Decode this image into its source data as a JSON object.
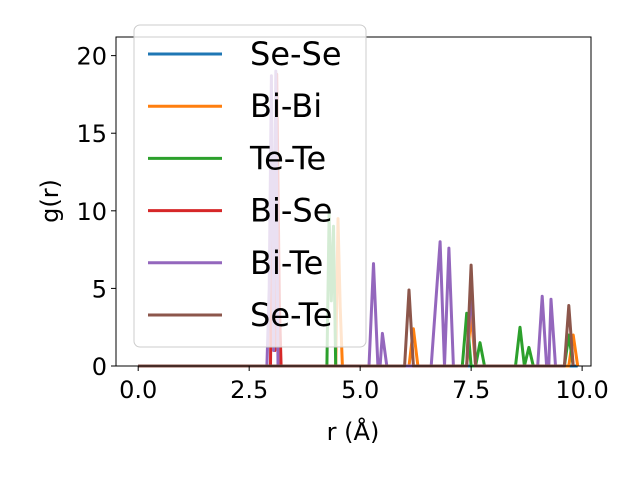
{
  "chart_data": {
    "type": "line",
    "xlabel": "r (Å)",
    "ylabel": "g(r)",
    "xlim": [
      -0.5,
      10.2
    ],
    "ylim": [
      0,
      21.2
    ],
    "xticks": [
      0.0,
      2.5,
      5.0,
      7.5,
      10.0
    ],
    "xtick_labels": [
      "0.0",
      "2.5",
      "5.0",
      "7.5",
      "10.0"
    ],
    "yticks": [
      0,
      5,
      10,
      15,
      20
    ],
    "ytick_labels": [
      "0",
      "5",
      "10",
      "15",
      "20"
    ],
    "grid": false,
    "legend_position": "upper-left",
    "series": [
      {
        "name": "Se-Se",
        "color": "#1f77b4",
        "x": [
          0.0,
          9.9
        ],
        "y": [
          0,
          0
        ]
      },
      {
        "name": "Bi-Bi",
        "color": "#ff7f0e",
        "x": [
          0.0,
          4.45,
          4.5,
          4.55,
          4.6,
          6.1,
          6.2,
          6.3,
          7.4,
          7.5,
          7.6,
          9.7,
          9.8,
          9.9
        ],
        "y": [
          0,
          0,
          9.5,
          3.8,
          0,
          0,
          2.4,
          0,
          0,
          3.4,
          0,
          0,
          2.0,
          0
        ]
      },
      {
        "name": "Te-Te",
        "color": "#2ca02c",
        "x": [
          0.0,
          4.25,
          4.3,
          4.35,
          4.4,
          4.45,
          7.3,
          7.4,
          7.5,
          7.6,
          7.7,
          7.8,
          8.5,
          8.6,
          8.7,
          8.8,
          8.9,
          9.6,
          9.7,
          9.8
        ],
        "y": [
          0,
          0,
          9.8,
          4.2,
          9.0,
          0,
          0,
          3.4,
          0,
          0,
          1.5,
          0,
          0,
          2.5,
          0,
          1.2,
          0,
          0,
          2.0,
          0
        ]
      },
      {
        "name": "Bi-Se",
        "color": "#d62728",
        "x": [
          0.0,
          2.98,
          3.02,
          3.08,
          3.12,
          3.18,
          3.22
        ],
        "y": [
          0,
          0,
          12.0,
          1.0,
          18.8,
          4.0,
          0
        ]
      },
      {
        "name": "Bi-Te",
        "color": "#9467bd",
        "x": [
          0.0,
          2.9,
          2.95,
          3.0,
          3.05,
          3.1,
          3.15,
          5.2,
          5.3,
          5.4,
          5.45,
          5.5,
          5.6,
          6.6,
          6.8,
          6.9,
          7.0,
          7.1,
          7.4,
          7.5,
          7.6,
          9.0,
          9.1,
          9.2,
          9.25,
          9.3,
          9.4
        ],
        "y": [
          0,
          0,
          5.0,
          18.7,
          1.0,
          19.0,
          0,
          0,
          6.6,
          0,
          0,
          2.1,
          0,
          0,
          8.0,
          0,
          7.6,
          0,
          0,
          5.0,
          0,
          0,
          4.5,
          0,
          0,
          4.3,
          0
        ]
      },
      {
        "name": "Se-Te",
        "color": "#8c564b",
        "x": [
          0.0,
          6.0,
          6.1,
          6.2,
          7.4,
          7.5,
          7.6,
          9.6,
          9.7,
          9.8
        ],
        "y": [
          0,
          0,
          4.9,
          0,
          0,
          6.5,
          0,
          0,
          3.9,
          0
        ]
      }
    ]
  }
}
